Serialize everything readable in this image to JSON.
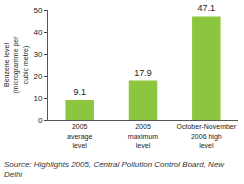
{
  "chart_data": {
    "type": "bar",
    "y_label": "Benzene level (microgramme per cubic metre)",
    "categories": [
      "2005 average level",
      "2005 maximum level",
      "October-November 2006 high level"
    ],
    "values": [
      9.1,
      17.9,
      47.1
    ],
    "color": "#8cc63e",
    "ylim": [
      0,
      50
    ],
    "yticks": [
      0,
      10,
      20,
      30,
      40,
      50
    ],
    "grid": false,
    "data_labels": true,
    "annotations": [
      "Source: Highlights 2005, Central Pollution Control Board, New Delhi"
    ]
  }
}
